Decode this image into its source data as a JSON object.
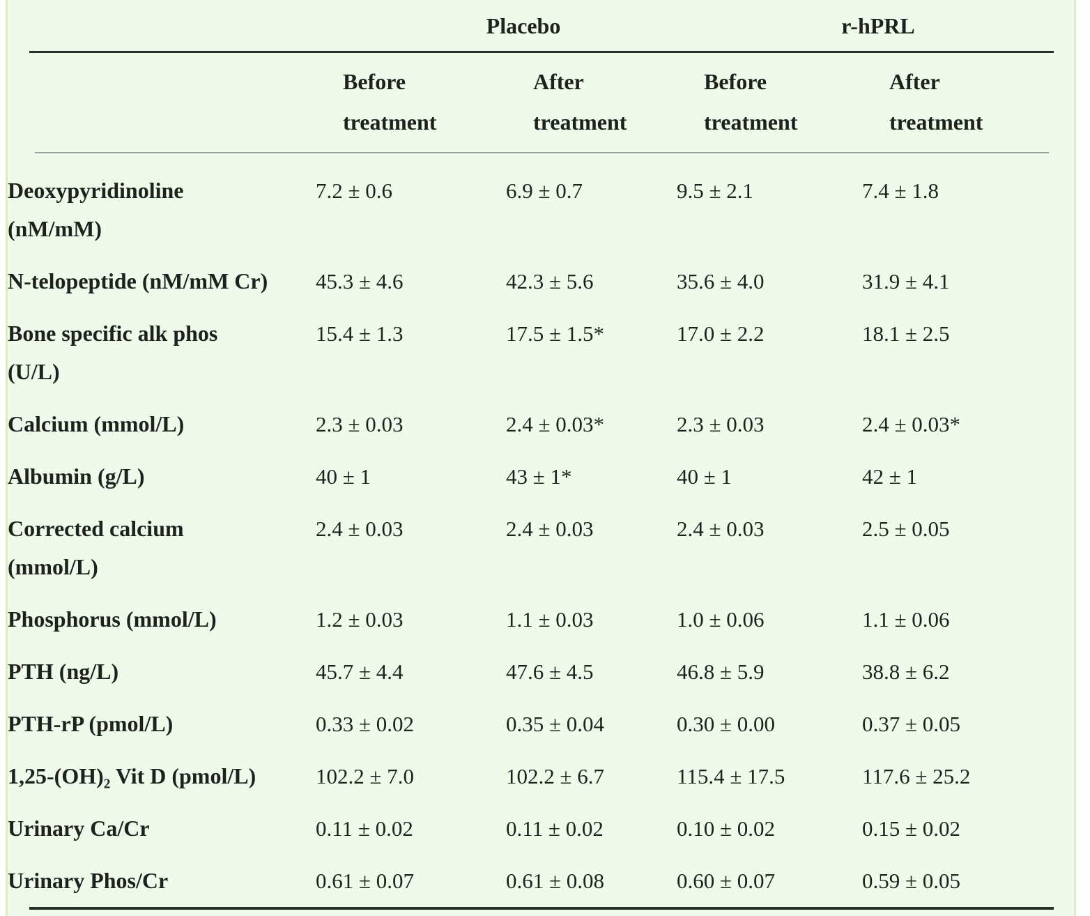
{
  "colors": {
    "bg": "#f0faeb",
    "stripe": "#dcebc3",
    "text": "#1e221e",
    "rule_dark": "#2b2f2b",
    "rule_gray": "#9b9f9b",
    "page": "#ffffff"
  },
  "table": {
    "column_groups": [
      {
        "label": "Placebo"
      },
      {
        "label": "r-hPRL"
      }
    ],
    "sub_headers": [
      "Before\ntreatment",
      "After\ntreatment",
      "Before\ntreatment",
      "After\ntreatment"
    ],
    "rows": [
      {
        "label": "Deoxypyridinoline\n(nM/mM)",
        "values": [
          "7.2 ± 0.6",
          "6.9 ± 0.7",
          "9.5 ± 2.1",
          "7.4 ± 1.8"
        ]
      },
      {
        "label": "N-telopeptide (nM/mM Cr)",
        "values": [
          "45.3 ± 4.6",
          "42.3 ± 5.6",
          "35.6 ± 4.0",
          "31.9 ± 4.1"
        ]
      },
      {
        "label": "Bone specific alk phos\n(U/L)",
        "values": [
          "15.4 ± 1.3",
          "17.5 ± 1.5*",
          "17.0 ± 2.2",
          "18.1 ± 2.5"
        ]
      },
      {
        "label": "Calcium (mmol/L)",
        "values": [
          "2.3 ± 0.03",
          "2.4 ± 0.03*",
          "2.3 ± 0.03",
          "2.4 ± 0.03*"
        ]
      },
      {
        "label": "Albumin (g/L)",
        "values": [
          "40 ± 1",
          "43 ± 1*",
          "40 ± 1",
          "42 ± 1"
        ]
      },
      {
        "label": "Corrected calcium\n(mmol/L)",
        "values": [
          "2.4 ± 0.03",
          "2.4 ± 0.03",
          "2.4 ± 0.03",
          "2.5 ± 0.05"
        ]
      },
      {
        "label": "Phosphorus (mmol/L)",
        "values": [
          "1.2 ± 0.03",
          "1.1 ± 0.03",
          "1.0 ± 0.06",
          "1.1 ± 0.06"
        ]
      },
      {
        "label": "PTH (ng/L)",
        "values": [
          "45.7 ± 4.4",
          "47.6 ± 4.5",
          "46.8 ± 5.9",
          "38.8 ± 6.2"
        ]
      },
      {
        "label": "PTH-rP (pmol/L)",
        "values": [
          "0.33 ± 0.02",
          "0.35 ± 0.04",
          "0.30 ± 0.00",
          "0.37 ± 0.05"
        ]
      },
      {
        "label": "1,25-(OH)₂ Vit D (pmol/L)",
        "values": [
          "102.2 ± 7.0",
          "102.2 ± 6.7",
          "115.4 ± 17.5",
          "117.6 ± 25.2"
        ]
      },
      {
        "label": "Urinary Ca/Cr",
        "values": [
          "0.11 ± 0.02",
          "0.11 ± 0.02",
          "0.10 ± 0.02",
          "0.15 ± 0.02"
        ]
      },
      {
        "label": "Urinary Phos/Cr",
        "values": [
          "0.61 ± 0.07",
          "0.61 ± 0.08",
          "0.60 ± 0.07",
          "0.59 ± 0.05"
        ]
      }
    ]
  }
}
